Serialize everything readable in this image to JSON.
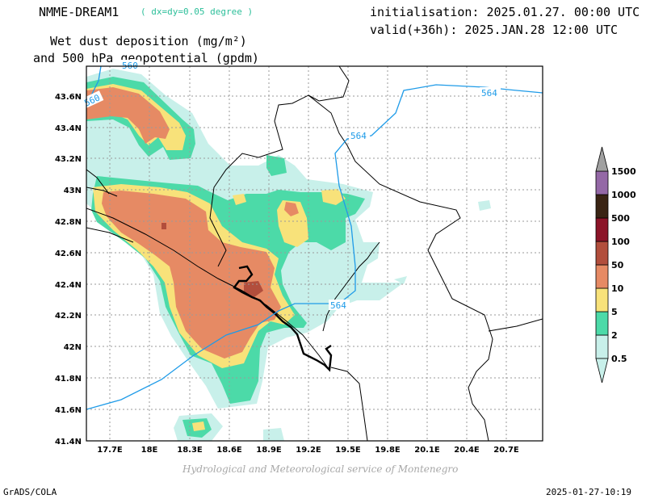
{
  "header": {
    "model": "NMME-DREAM1",
    "resolution": "( dx=dy=0.05 degree )",
    "variable_line1": "Wet dust deposition (mg/m²)",
    "variable_line2": "and 500 hPa geopotential (gpdm)",
    "initialisation": "initialisation: 2025.01.27. 00:00 UTC",
    "valid": "valid(+36h): 2025.JAN.28 12:00 UTC"
  },
  "map": {
    "lat_labels": [
      "43.6N",
      "43.4N",
      "43.2N",
      "43N",
      "42.8N",
      "42.6N",
      "42.4N",
      "42.2N",
      "42N",
      "41.8N",
      "41.6N",
      "41.4N"
    ],
    "lon_labels": [
      "17.7E",
      "18E",
      "18.3E",
      "18.6E",
      "18.9E",
      "19.2E",
      "19.5E",
      "19.8E",
      "20.1E",
      "20.4E",
      "20.7E"
    ],
    "contour_labels": [
      "560",
      "560",
      "564",
      "564",
      "564"
    ],
    "contour_color": "#1e9be8"
  },
  "legend": {
    "levels": [
      "0.5",
      "2",
      "5",
      "10",
      "50",
      "100",
      "500",
      "1000",
      "1500"
    ],
    "colors": [
      "#c8f0ea",
      "#4cdaa8",
      "#f8e27a",
      "#e68a64",
      "#b24e3c",
      "#8c1428",
      "#3a2414",
      "#9468a6",
      "#a0a0a0"
    ]
  },
  "footer": {
    "credit": "Hydrological and Meteorological service of Montenegro",
    "software": "GrADS/COLA",
    "timestamp": "2025-01-27-10:19"
  }
}
